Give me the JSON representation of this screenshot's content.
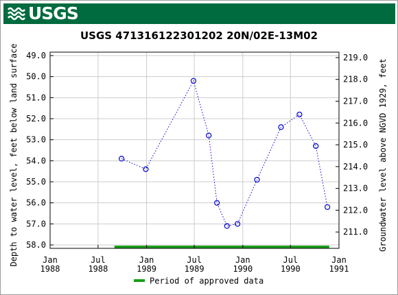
{
  "banner": {
    "agency": "USGS",
    "color": "#006b3f"
  },
  "chart_data": {
    "type": "scatter",
    "title": "USGS 471316122301202 20N/02E-13M02",
    "ylabel_left": "Depth to water level, feet below land surface",
    "ylabel_right": "Groundwater level above NGVD 1929, feet",
    "ylim_left": [
      58.0,
      49.0
    ],
    "ylim_right": [
      210.25,
      219.25
    ],
    "y_ticks_left": [
      "49.0",
      "50.0",
      "51.0",
      "52.0",
      "53.0",
      "54.0",
      "55.0",
      "56.0",
      "57.0",
      "58.0"
    ],
    "y_ticks_right": [
      "219.0",
      "218.0",
      "217.0",
      "216.0",
      "215.0",
      "214.0",
      "213.0",
      "212.0",
      "211.0"
    ],
    "x_range": [
      "1988-01-01",
      "1991-01-01"
    ],
    "x_ticks": [
      {
        "date": "1988-01-01",
        "line1": "Jan",
        "line2": "1988"
      },
      {
        "date": "1988-07-01",
        "line1": "Jul",
        "line2": "1988"
      },
      {
        "date": "1989-01-01",
        "line1": "Jan",
        "line2": "1989"
      },
      {
        "date": "1989-07-01",
        "line1": "Jul",
        "line2": "1989"
      },
      {
        "date": "1990-01-01",
        "line1": "Jan",
        "line2": "1990"
      },
      {
        "date": "1990-07-01",
        "line1": "Jul",
        "line2": "1990"
      },
      {
        "date": "1991-01-01",
        "line1": "Jan",
        "line2": "1991"
      }
    ],
    "grid": true,
    "series": [
      {
        "marker": "open-circle",
        "line_style": "dotted",
        "color": "#0000cc",
        "points": [
          {
            "date": "1988-09-28",
            "value": 53.9
          },
          {
            "date": "1988-12-29",
            "value": 54.4
          },
          {
            "date": "1989-06-28",
            "value": 50.2
          },
          {
            "date": "1989-08-25",
            "value": 52.8
          },
          {
            "date": "1989-09-25",
            "value": 56.0
          },
          {
            "date": "1989-11-02",
            "value": 57.1
          },
          {
            "date": "1989-12-12",
            "value": 57.0
          },
          {
            "date": "1990-02-24",
            "value": 54.9
          },
          {
            "date": "1990-05-26",
            "value": 52.4
          },
          {
            "date": "1990-08-04",
            "value": 51.8
          },
          {
            "date": "1990-10-05",
            "value": 53.3
          },
          {
            "date": "1990-11-18",
            "value": 56.2
          }
        ]
      }
    ],
    "approved_period": {
      "start": "1988-09-01",
      "end": "1990-11-25",
      "color": "#1a9e1a"
    },
    "legend": {
      "label": "Period of approved data",
      "position": "bottom-center"
    }
  }
}
